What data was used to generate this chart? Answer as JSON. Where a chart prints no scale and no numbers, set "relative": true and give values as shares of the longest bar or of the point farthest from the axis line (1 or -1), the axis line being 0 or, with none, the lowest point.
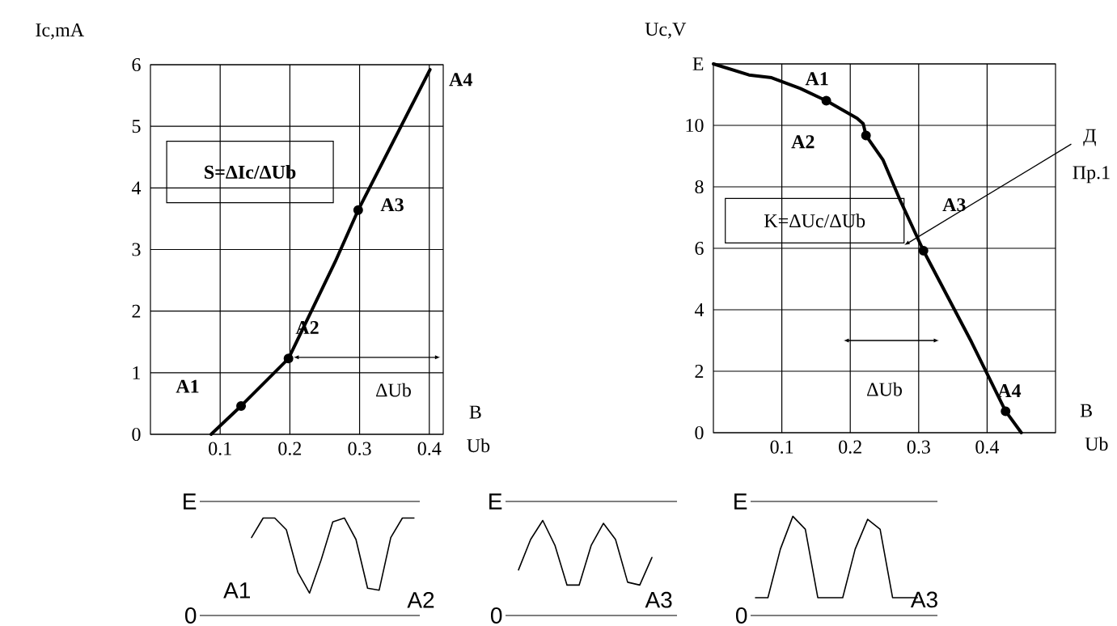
{
  "chart_data": [
    {
      "type": "line",
      "xlabel": "Ub",
      "ylabel": "Ic,mA",
      "xlim": [
        0,
        0.42
      ],
      "ylim": [
        0,
        6
      ],
      "xticks": [
        0.1,
        0.2,
        0.3,
        0.4
      ],
      "yticks": [
        0,
        1,
        2,
        3,
        4,
        5,
        6
      ],
      "grid": true,
      "series": [
        {
          "color": "#000000",
          "marker": "none",
          "x": [
            0.087,
            0.13,
            0.198,
            0.265,
            0.298,
            0.401
          ],
          "values": [
            0,
            0.46,
            1.23,
            2.8,
            3.64,
            5.92
          ]
        },
        {
          "type": "scatter",
          "color": "#000000",
          "marker": "circle",
          "x": [
            0.13,
            0.198,
            0.298
          ],
          "values": [
            0.46,
            1.23,
            3.64
          ]
        }
      ],
      "annotations": [
        "A1",
        "A2",
        "A3",
        "A4",
        "S=ΔIc/ΔUb",
        "ΔUb",
        "В"
      ]
    },
    {
      "type": "line",
      "xlabel": "Ub",
      "ylabel": "Uc,V",
      "xlim": [
        0,
        0.5
      ],
      "ylim": [
        0,
        12
      ],
      "xticks": [
        0.1,
        0.2,
        0.3,
        0.4
      ],
      "yticks": [
        0,
        2,
        4,
        6,
        8,
        10,
        {
          "value": 12,
          "label": "E"
        }
      ],
      "grid": true,
      "series": [
        {
          "color": "#000000",
          "marker": "none",
          "x": [
            0,
            0.052,
            0.085,
            0.127,
            0.165,
            0.21,
            0.219,
            0.223,
            0.248,
            0.273,
            0.307,
            0.377,
            0.427,
            0.45
          ],
          "values": [
            12,
            11.64,
            11.55,
            11.2,
            10.8,
            10.23,
            10.05,
            9.67,
            8.87,
            7.56,
            5.92,
            2.96,
            0.7,
            0
          ]
        },
        {
          "type": "scatter",
          "color": "#000000",
          "marker": "circle",
          "x": [
            0.165,
            0.223,
            0.307,
            0.427
          ],
          "values": [
            10.8,
            9.67,
            5.92,
            0.7
          ]
        }
      ],
      "annotations": [
        "A1",
        "A2",
        "A3",
        "A4",
        "K=ΔUc/ΔUb",
        "ΔUb",
        "Д",
        "Пр.1",
        "В"
      ]
    },
    {
      "type": "line",
      "relative": true,
      "categories": [
        null,
        null,
        null,
        null,
        null,
        null,
        null,
        null,
        null,
        null,
        null,
        null,
        null,
        null,
        null
      ],
      "color": "#000000",
      "values": [
        0.8,
        1,
        1,
        0.88,
        0.44,
        0.23,
        0.57,
        0.96,
        1,
        0.78,
        0.28,
        0.26,
        0.8,
        1,
        1
      ],
      "ref_lines": [
        {
          "axis": "y",
          "value": 1.17,
          "label": "E",
          "color": "#000000"
        },
        {
          "axis": "y",
          "value": 0,
          "label": "0",
          "color": "#000000"
        }
      ],
      "annotations": [
        "A1",
        "A2"
      ]
    },
    {
      "type": "line",
      "relative": true,
      "categories": [
        null,
        null,
        null,
        null,
        null,
        null,
        null,
        null,
        null,
        null,
        null,
        null
      ],
      "color": "#000000",
      "values": [
        0.48,
        0.8,
        1,
        0.74,
        0.32,
        0.32,
        0.74,
        0.97,
        0.8,
        0.35,
        0.32,
        0.61
      ],
      "ref_lines": [
        {
          "axis": "y",
          "value": 1.2,
          "label": "E",
          "color": "#000000"
        },
        {
          "axis": "y",
          "value": 0,
          "label": "0",
          "color": "#000000"
        }
      ],
      "annotations": [
        "A3"
      ]
    },
    {
      "type": "line",
      "relative": true,
      "categories": [
        null,
        null,
        null,
        null,
        null,
        null,
        null,
        null,
        null,
        null,
        null,
        null,
        null,
        null
      ],
      "color": "#000000",
      "values": [
        0.18,
        0.18,
        0.67,
        1,
        0.87,
        0.18,
        0.18,
        0.18,
        0.67,
        0.97,
        0.87,
        0.18,
        0.18,
        0.18
      ],
      "ref_lines": [
        {
          "axis": "y",
          "value": 1.15,
          "label": "E",
          "color": "#000000"
        },
        {
          "axis": "y",
          "value": 0,
          "label": "0",
          "color": "#000000"
        }
      ],
      "annotations": [
        "A3"
      ]
    }
  ]
}
